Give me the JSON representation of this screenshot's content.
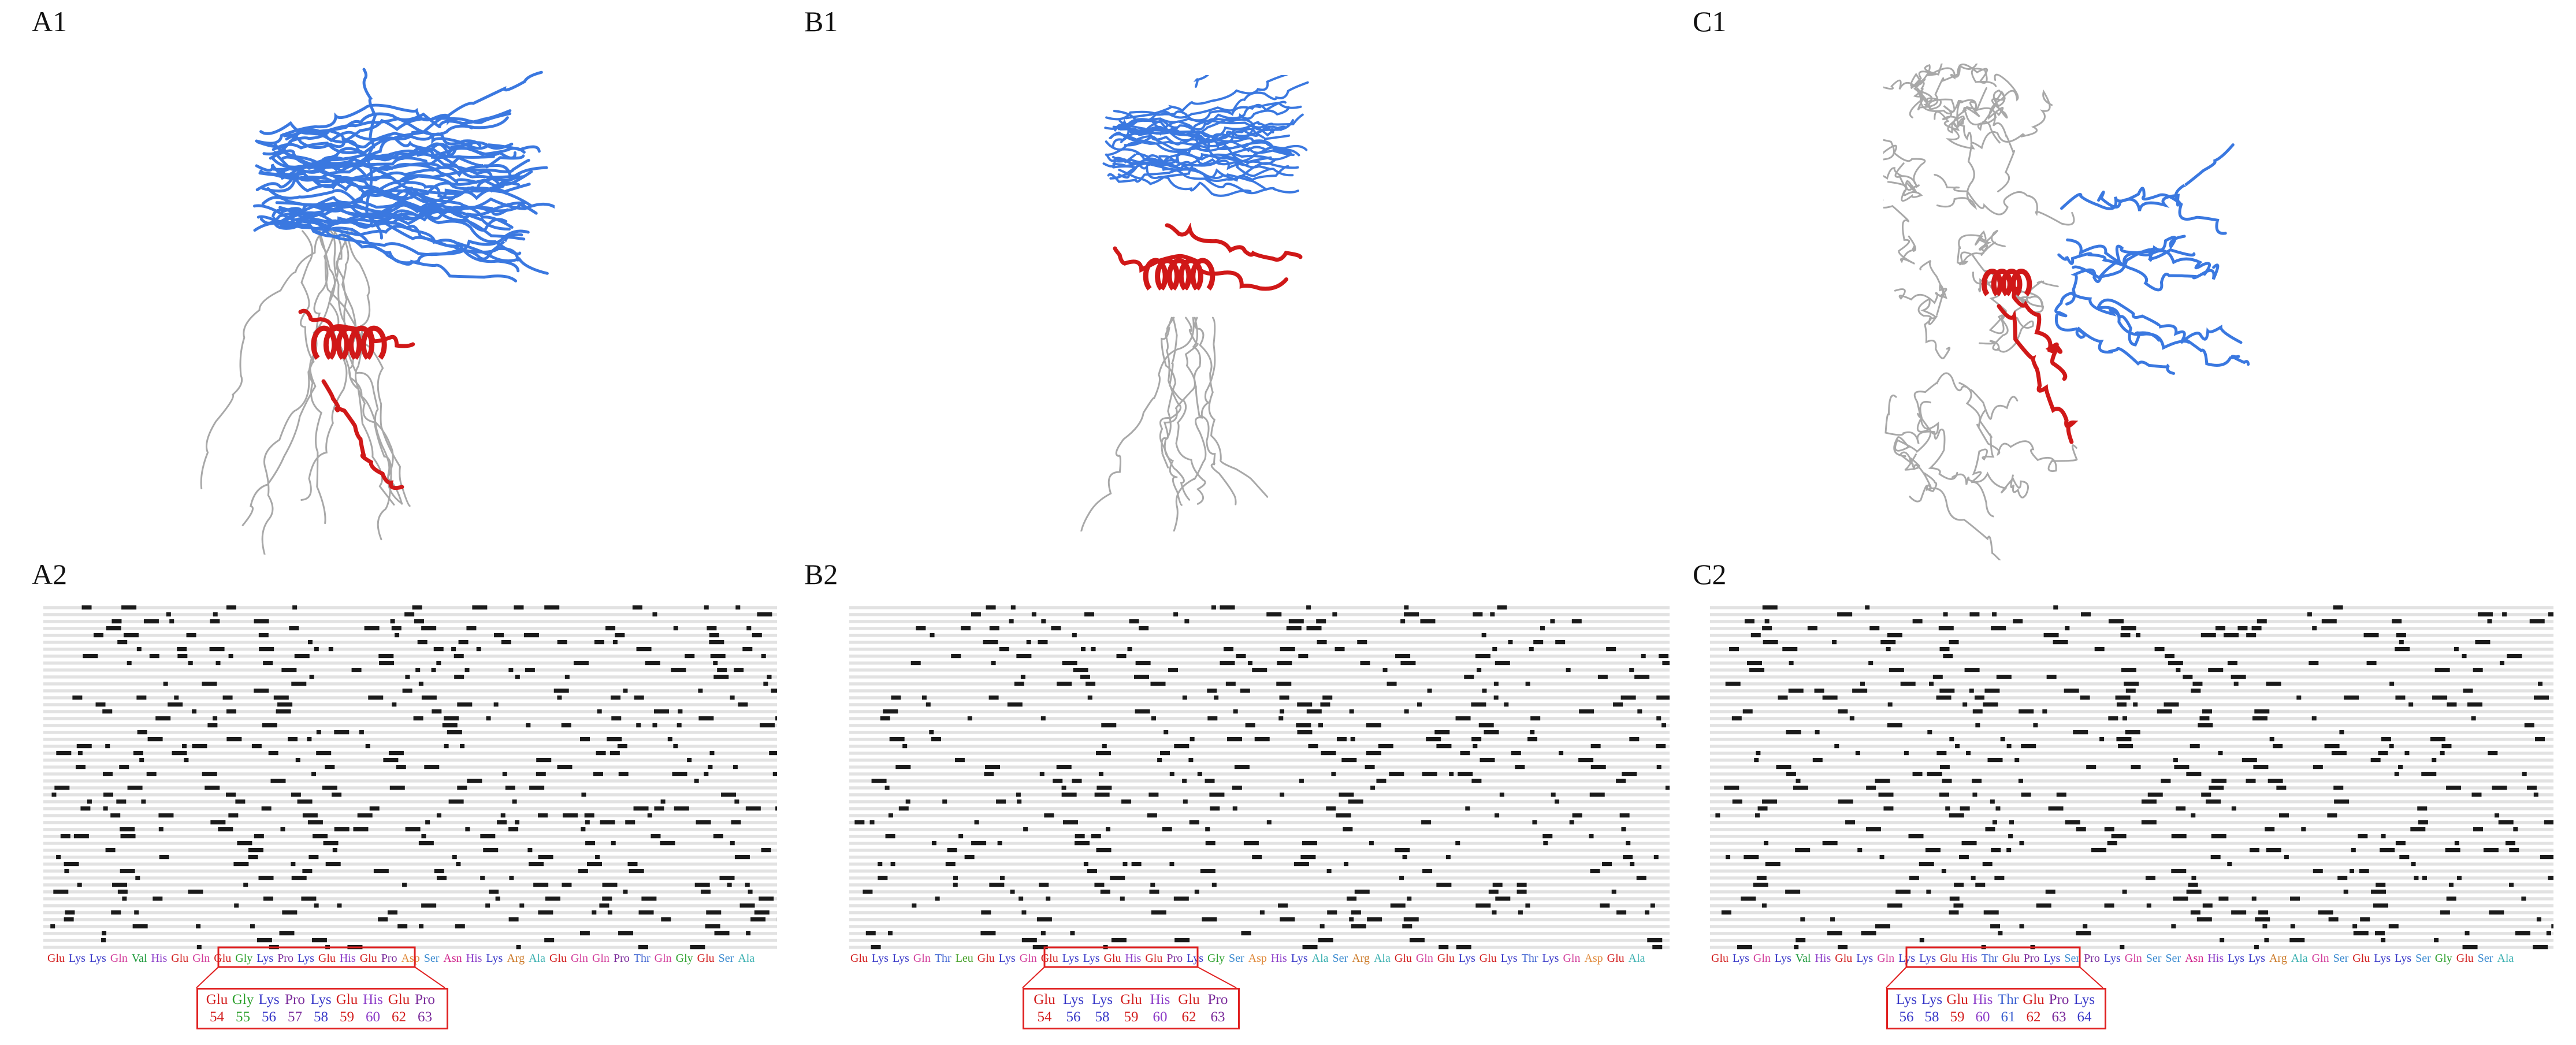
{
  "colors": {
    "blue": "#3a78e0",
    "red": "#d01818",
    "grey": "#a8a8a8",
    "box": "#e02020"
  },
  "residue_colors": {
    "Glu": "#d21c1c",
    "Lys": "#3838c8",
    "Gln": "#d23c9a",
    "Val": "#1e9a3c",
    "His": "#8c3cc8",
    "Gly": "#2ca02c",
    "Pro": "#7a2a9a",
    "Asp": "#e08a3c",
    "Ser": "#3a8ad0",
    "Asn": "#d0208a",
    "Arg": "#cc7a28",
    "Ala": "#3ab0b0",
    "Thr": "#3a60d0",
    "Leu": "#46a028"
  },
  "panels": {
    "A1": "A1",
    "B1": "B1",
    "C1": "C1",
    "A2": "A2",
    "B2": "B2",
    "C2": "C2"
  },
  "sequence_A": [
    "Glu",
    "Lys",
    "Lys",
    "Gln",
    "Val",
    "His",
    "Glu",
    "Gln",
    "Glu",
    "Gly",
    "Lys",
    "Pro",
    "Lys",
    "Glu",
    "His",
    "Glu",
    "Pro",
    "Asp",
    "Ser",
    "Asn",
    "His",
    "Lys",
    "Arg",
    "Ala",
    "Glu",
    "Gln",
    "Gln",
    "Pro",
    "Thr",
    "Gln",
    "Gly",
    "Glu",
    "Ser",
    "Ala"
  ],
  "sequence_B": [
    "Glu",
    "Lys",
    "Lys",
    "Gln",
    "Thr",
    "Leu",
    "Glu",
    "Lys",
    "Gln",
    "Glu",
    "Lys",
    "Lys",
    "Glu",
    "His",
    "Glu",
    "Pro",
    "Lys",
    "Gly",
    "Ser",
    "Asp",
    "His",
    "Lys",
    "Ala",
    "Ser",
    "Arg",
    "Ala",
    "Glu",
    "Gln",
    "Glu",
    "Lys",
    "Glu",
    "Lys",
    "Thr",
    "Lys",
    "Gln",
    "Asp",
    "Glu",
    "Ala"
  ],
  "sequence_C": [
    "Glu",
    "Lys",
    "Gln",
    "Lys",
    "Val",
    "His",
    "Glu",
    "Lys",
    "Gln",
    "Lys",
    "Lys",
    "Glu",
    "His",
    "Thr",
    "Glu",
    "Pro",
    "Lys",
    "Ser",
    "Pro",
    "Lys",
    "Gln",
    "Ser",
    "Ser",
    "Asn",
    "His",
    "Lys",
    "Lys",
    "Arg",
    "Ala",
    "Gln",
    "Ser",
    "Glu",
    "Lys",
    "Lys",
    "Ser",
    "Gly",
    "Glu",
    "Ser",
    "Ala"
  ],
  "zoom_A": {
    "residues": [
      "Glu",
      "Gly",
      "Lys",
      "Pro",
      "Lys",
      "Glu",
      "His",
      "Glu",
      "Pro"
    ],
    "numbers": [
      "54",
      "55",
      "56",
      "57",
      "58",
      "59",
      "60",
      "62",
      "63"
    ]
  },
  "zoom_B": {
    "residues": [
      "Glu",
      "Lys",
      "Lys",
      "Glu",
      "His",
      "Glu",
      "Pro"
    ],
    "numbers": [
      "54",
      "56",
      "58",
      "59",
      "60",
      "62",
      "63"
    ]
  },
  "zoom_C": {
    "residues": [
      "Lys",
      "Lys",
      "Glu",
      "His",
      "Thr",
      "Glu",
      "Pro",
      "Lys"
    ],
    "numbers": [
      "56",
      "58",
      "59",
      "60",
      "61",
      "62",
      "63",
      "64"
    ]
  }
}
